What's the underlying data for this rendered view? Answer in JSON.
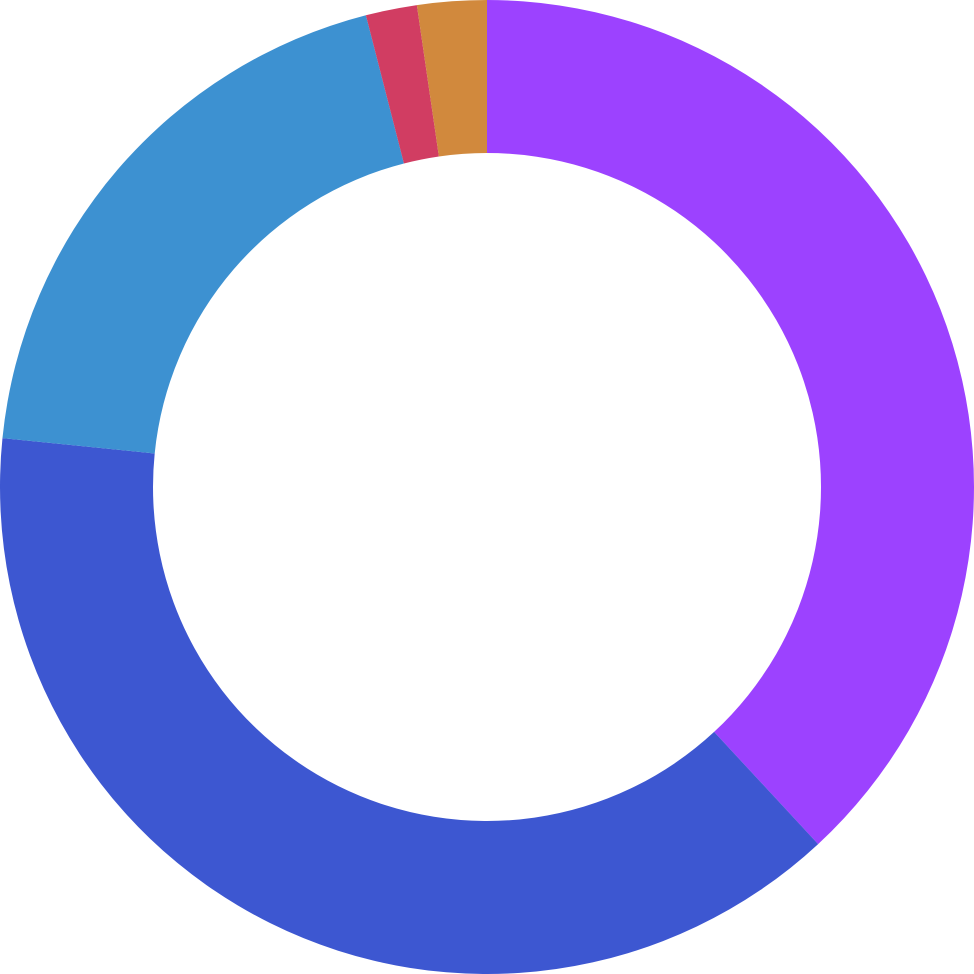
{
  "chart_data": {
    "type": "pie",
    "donut": true,
    "title": "",
    "legend": "none",
    "slices": [
      {
        "value": 38.1,
        "color": "#9c42ff"
      },
      {
        "value": 38.5,
        "color": "#3d57d1"
      },
      {
        "value": 19.4,
        "color": "#3d91d1"
      },
      {
        "value": 1.7,
        "color": "#d13d62"
      },
      {
        "value": 2.3,
        "color": "#d1893d"
      }
    ]
  }
}
